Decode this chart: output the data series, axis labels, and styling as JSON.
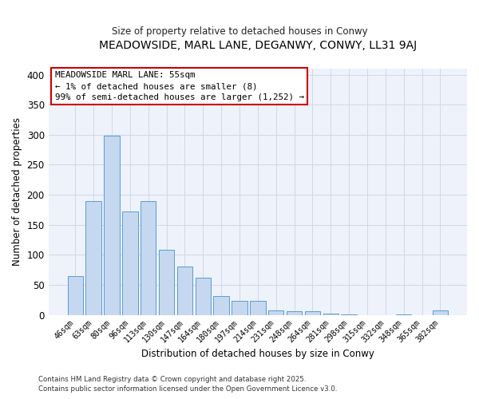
{
  "title": "MEADOWSIDE, MARL LANE, DEGANWY, CONWY, LL31 9AJ",
  "subtitle": "Size of property relative to detached houses in Conwy",
  "xlabel": "Distribution of detached houses by size in Conwy",
  "ylabel": "Number of detached properties",
  "bar_color": "#c5d8f0",
  "bar_edge_color": "#5b9bd5",
  "categories": [
    "46sqm",
    "63sqm",
    "80sqm",
    "96sqm",
    "113sqm",
    "130sqm",
    "147sqm",
    "164sqm",
    "180sqm",
    "197sqm",
    "214sqm",
    "231sqm",
    "248sqm",
    "264sqm",
    "281sqm",
    "298sqm",
    "315sqm",
    "332sqm",
    "348sqm",
    "365sqm",
    "382sqm"
  ],
  "values": [
    65,
    190,
    298,
    172,
    190,
    109,
    80,
    62,
    32,
    23,
    24,
    7,
    6,
    6,
    2,
    1,
    0,
    0,
    1,
    0,
    7
  ],
  "ylim": [
    0,
    410
  ],
  "yticks": [
    0,
    50,
    100,
    150,
    200,
    250,
    300,
    350,
    400
  ],
  "annotation_title": "MEADOWSIDE MARL LANE: 55sqm",
  "annotation_line2": "← 1% of detached houses are smaller (8)",
  "annotation_line3": "99% of semi-detached houses are larger (1,252) →",
  "annotation_box_color": "#ffffff",
  "annotation_edge_color": "#cc0000",
  "grid_color": "#d0d8e8",
  "background_color": "#ffffff",
  "plot_bg_color": "#eef2fa",
  "footnote1": "Contains HM Land Registry data © Crown copyright and database right 2025.",
  "footnote2": "Contains public sector information licensed under the Open Government Licence v3.0."
}
